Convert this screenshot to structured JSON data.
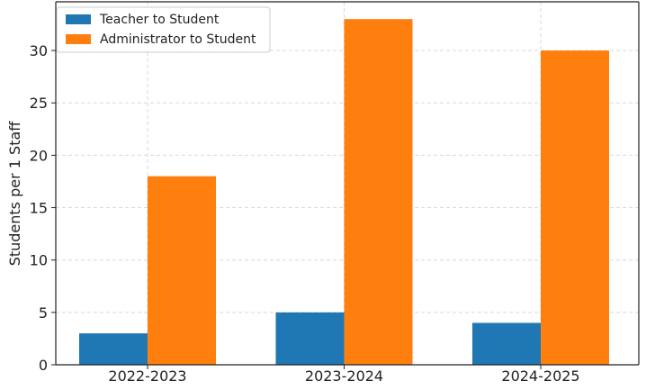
{
  "chart_data": {
    "type": "bar",
    "categories": [
      "2022-2023",
      "2023-2024",
      "2024-2025"
    ],
    "series": [
      {
        "name": "Teacher to Student",
        "values": [
          3,
          5,
          4
        ],
        "color": "#1f77b4"
      },
      {
        "name": "Administrator to Student",
        "values": [
          18,
          33,
          30
        ],
        "color": "#ff7f0e"
      }
    ],
    "title": "",
    "xlabel": "",
    "ylabel": "Students per 1 Staff",
    "ylim": [
      0,
      34.65
    ],
    "yticks": [
      0,
      5,
      10,
      15,
      20,
      25,
      30
    ],
    "grid": true,
    "legend_position": "top-left"
  }
}
